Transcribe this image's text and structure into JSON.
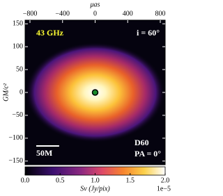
{
  "chart_data": {
    "type": "image",
    "x_label": "μas",
    "y_label": "GM/c²",
    "xlim": [
      -860,
      860
    ],
    "xticks": [
      {
        "value": -800,
        "label": "−800"
      },
      {
        "value": -400,
        "label": "−400"
      },
      0,
      400,
      800
    ],
    "ylim": [
      -158,
      158
    ],
    "yticks": [
      150,
      100,
      50,
      0,
      {
        "value": -50,
        "label": "−50"
      },
      {
        "value": -100,
        "label": "−100"
      },
      {
        "value": -150,
        "label": "−150"
      }
    ],
    "annotations": [
      "43 GHz",
      "i = 60°",
      "D60",
      "PA = 0°"
    ],
    "scalebar": {
      "label": "50M",
      "length": 50
    },
    "colorbar": {
      "label": "Sν (Jy/pix)",
      "offset": "1e−5",
      "lim": [
        0,
        2.0
      ],
      "ticks": [
        {
          "value": 0,
          "label": "0.0"
        },
        {
          "value": 0.5,
          "label": "0.5"
        },
        {
          "value": 1.0,
          "label": "1.0"
        },
        {
          "value": 1.5,
          "label": "1.5"
        },
        {
          "value": 2.0,
          "label": "2.0"
        }
      ]
    }
  }
}
